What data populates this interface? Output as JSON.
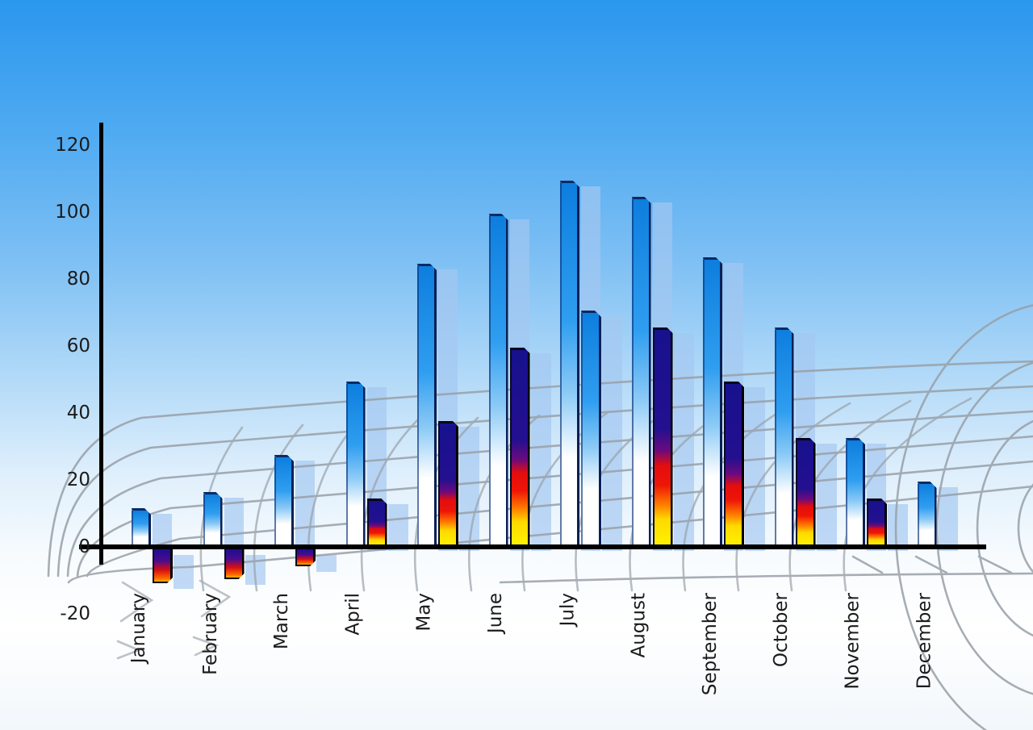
{
  "chart_data": {
    "type": "bar",
    "title": "",
    "xlabel": "",
    "ylabel": "",
    "categories": [
      "January",
      "February",
      "March",
      "April",
      "May",
      "June",
      "July",
      "August",
      "September",
      "October",
      "November",
      "December"
    ],
    "series": [
      {
        "name": "primary-blue-bars",
        "values": [
          11,
          16,
          27,
          49,
          84,
          99,
          109,
          104,
          86,
          65,
          32,
          19
        ]
      },
      {
        "name": "secondary-rainbow-bars",
        "values": [
          -10,
          -9,
          -5,
          14,
          37,
          59,
          70,
          65,
          49,
          32,
          14,
          null
        ],
        "style_overrides": {
          "6": "blue-gradient"
        }
      }
    ],
    "yticks": [
      120,
      100,
      80,
      60,
      40,
      20,
      0,
      -20
    ],
    "ylim": [
      -20,
      120
    ],
    "legend": "none",
    "grid": "decorative curved gray mesh over sky background",
    "bar_shadows": "translucent light-blue offset copies behind each bar"
  },
  "colors": {
    "sky_top": "#2b97ee",
    "sky_bottom": "#f2f7fb",
    "bar_blue_top": "#0d7ede",
    "bar_blue_bottom": "#ffffff",
    "rainbow_navy": "#17118e",
    "rainbow_red": "#e30d0d",
    "rainbow_orange": "#ff7b00",
    "rainbow_yellow": "#fff200",
    "shadow_bar": "#a3c7f0",
    "mesh_line": "#98a0a8",
    "axis": "#000000",
    "label_text": "#1b1b1b"
  }
}
